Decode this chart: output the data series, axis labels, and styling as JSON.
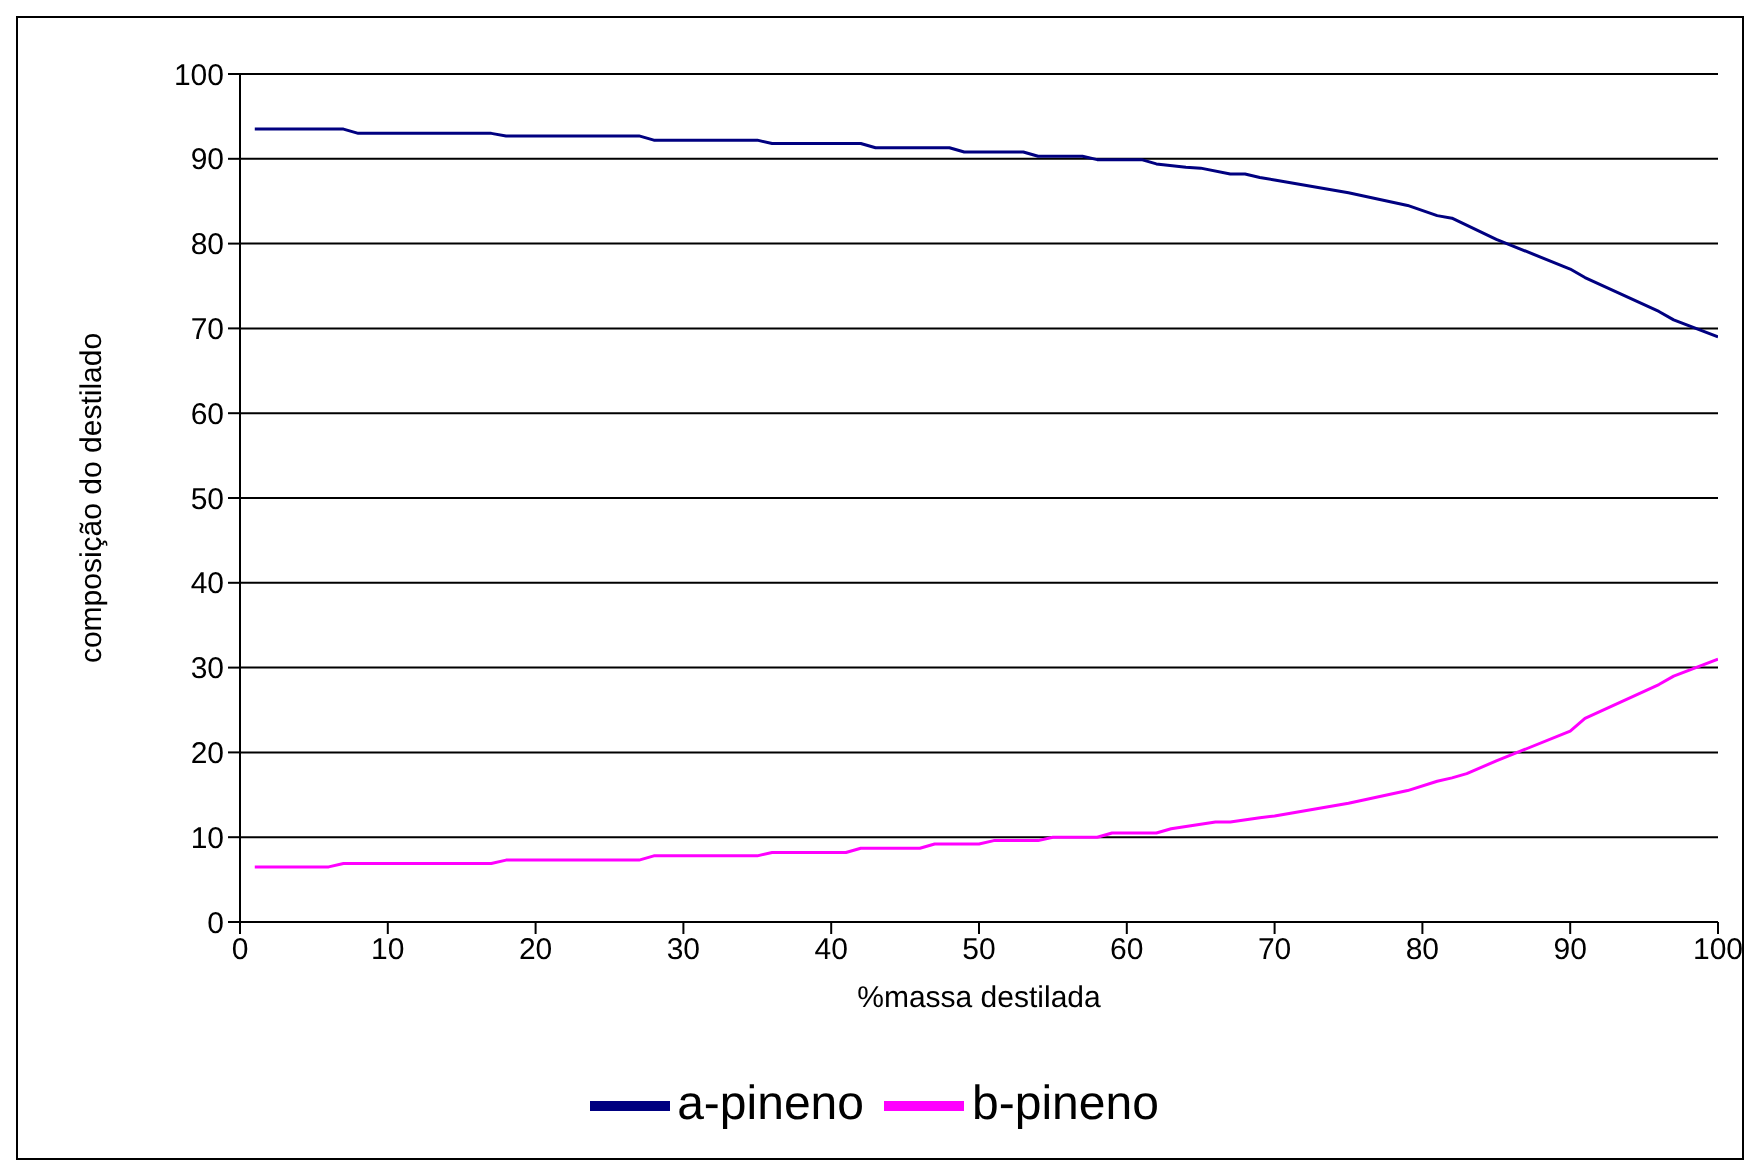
{
  "chart_data": {
    "type": "line",
    "xlabel": "%massa destilada",
    "ylabel": "composição do destilado",
    "xlim": [
      0,
      100
    ],
    "xticks": [
      0,
      10,
      20,
      30,
      40,
      50,
      60,
      70,
      80,
      90,
      100
    ],
    "ylim": [
      0,
      100
    ],
    "yticks": [
      0,
      10,
      20,
      30,
      40,
      50,
      60,
      70,
      80,
      90,
      100
    ],
    "grid": "y",
    "legend": "bottom",
    "marker": "none",
    "line_style": "solid",
    "series": [
      {
        "name": "a-pineno",
        "color": "#000080",
        "x": [
          1,
          7,
          8,
          17,
          18,
          27,
          28,
          35,
          36,
          42,
          43,
          48,
          49,
          53,
          54,
          57,
          58,
          61,
          62,
          64,
          65,
          67,
          68,
          69,
          70,
          75,
          79,
          81,
          82,
          85,
          90,
          91,
          96,
          97,
          100
        ],
        "values": [
          93.5,
          93.5,
          93,
          93,
          92.7,
          92.7,
          92.2,
          92.2,
          91.8,
          91.8,
          91.3,
          91.3,
          90.8,
          90.8,
          90.3,
          90.3,
          89.9,
          89.9,
          89.4,
          89,
          88.9,
          88.2,
          88.2,
          87.8,
          87.5,
          86,
          84.5,
          83.3,
          83,
          80.5,
          77,
          76,
          72,
          71,
          69
        ]
      },
      {
        "name": "b-pineno",
        "color": "#ff00ff",
        "x": [
          1,
          6,
          7,
          17,
          18,
          27,
          28,
          35,
          36,
          41,
          42,
          46,
          47,
          50,
          51,
          54,
          55,
          58,
          59,
          62,
          63,
          66,
          67,
          69,
          70,
          75,
          79,
          81,
          82,
          83,
          85,
          90,
          91,
          96,
          97,
          100
        ],
        "values": [
          6.5,
          6.5,
          6.9,
          6.9,
          7.3,
          7.3,
          7.8,
          7.8,
          8.2,
          8.2,
          8.7,
          8.7,
          9.2,
          9.2,
          9.6,
          9.6,
          10,
          10,
          10.5,
          10.5,
          11,
          11.8,
          11.8,
          12.3,
          12.5,
          14,
          15.5,
          16.6,
          17,
          17.5,
          19,
          22.5,
          24,
          28,
          29,
          31
        ]
      }
    ]
  }
}
